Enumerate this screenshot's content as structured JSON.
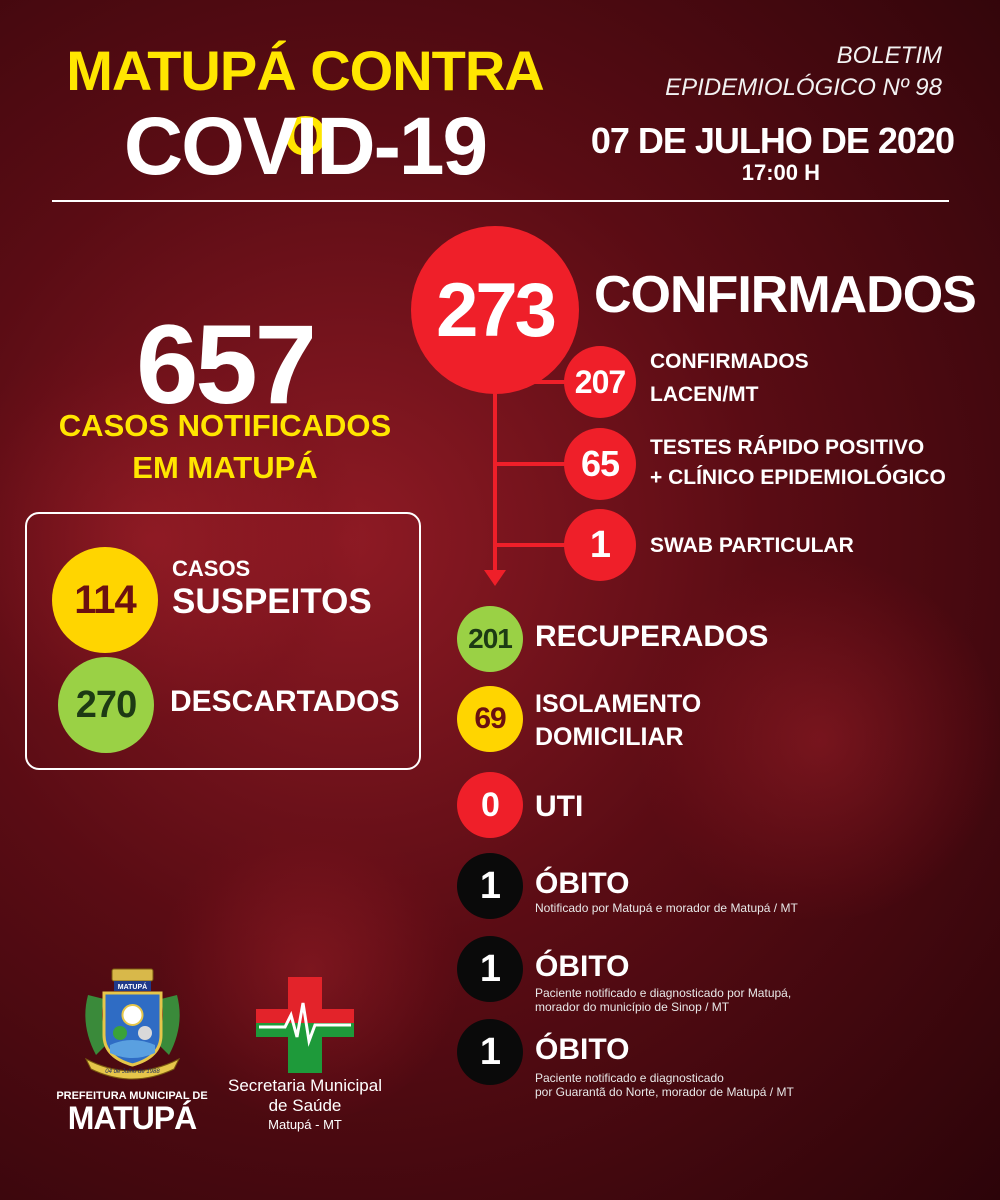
{
  "header": {
    "title_line1": "MATUPÁ CONTRA O",
    "title_line2": "COVID-19",
    "bulletin_line1": "BOLETIM",
    "bulletin_line2": "EPIDEMIOLÓGICO Nº 98",
    "date": "07 DE JULHO DE 2020",
    "time": "17:00 H"
  },
  "notified": {
    "total": "657",
    "label_line1": "CASOS NOTIFICADOS",
    "label_line2": "EM MATUPÁ"
  },
  "suspects": {
    "value": "114",
    "label_small": "CASOS",
    "label_big": "SUSPEITOS"
  },
  "discarded": {
    "value": "270",
    "label": "DESCARTADOS"
  },
  "confirmed": {
    "total": "273",
    "label": "CONFIRMADOS",
    "breakdown": [
      {
        "value": "207",
        "line1": "CONFIRMADOS",
        "line2": "LACEN/MT"
      },
      {
        "value": "65",
        "line1": "TESTES RÁPIDO POSITIVO",
        "line2": "+ CLÍNICO EPIDEMIOLÓGICO"
      },
      {
        "value": "1",
        "line1": "SWAB PARTICULAR",
        "line2": ""
      }
    ]
  },
  "recovered": {
    "value": "201",
    "label": "RECUPERADOS"
  },
  "isolation": {
    "value": "69",
    "line1": "ISOLAMENTO",
    "line2": "DOMICILIAR"
  },
  "icu": {
    "value": "0",
    "label": "UTI"
  },
  "deaths": [
    {
      "value": "1",
      "label": "ÓBITO",
      "note1": "Notificado por Matupá e morador de Matupá / MT",
      "note2": ""
    },
    {
      "value": "1",
      "label": "ÓBITO",
      "note1": "Paciente notificado e diagnosticado por Matupá,",
      "note2": "morador do município de Sinop / MT"
    },
    {
      "value": "1",
      "label": "ÓBITO",
      "note1": "Paciente notificado e diagnosticado",
      "note2": "por Guarantã do Norte, morador de Matupá / MT"
    }
  ],
  "footer": {
    "crest_top_text": "MATUPÁ",
    "crest_ribbon_text": "04 de Julho de 1988",
    "prefeitura_line1": "PREFEITURA MUNICIPAL DE",
    "prefeitura_line2": "MATUPÁ",
    "secretaria_line1": "Secretaria Municipal",
    "secretaria_line2": "de Saúde",
    "secretaria_line3": "Matupá - MT"
  },
  "colors": {
    "background": "#5a0c14",
    "title_yellow": "#ffe600",
    "confirmed_red": "#ef1f29",
    "suspect_yellow": "#ffd500",
    "discarded_green": "#9ad145",
    "death_black": "#0a0a0a"
  }
}
